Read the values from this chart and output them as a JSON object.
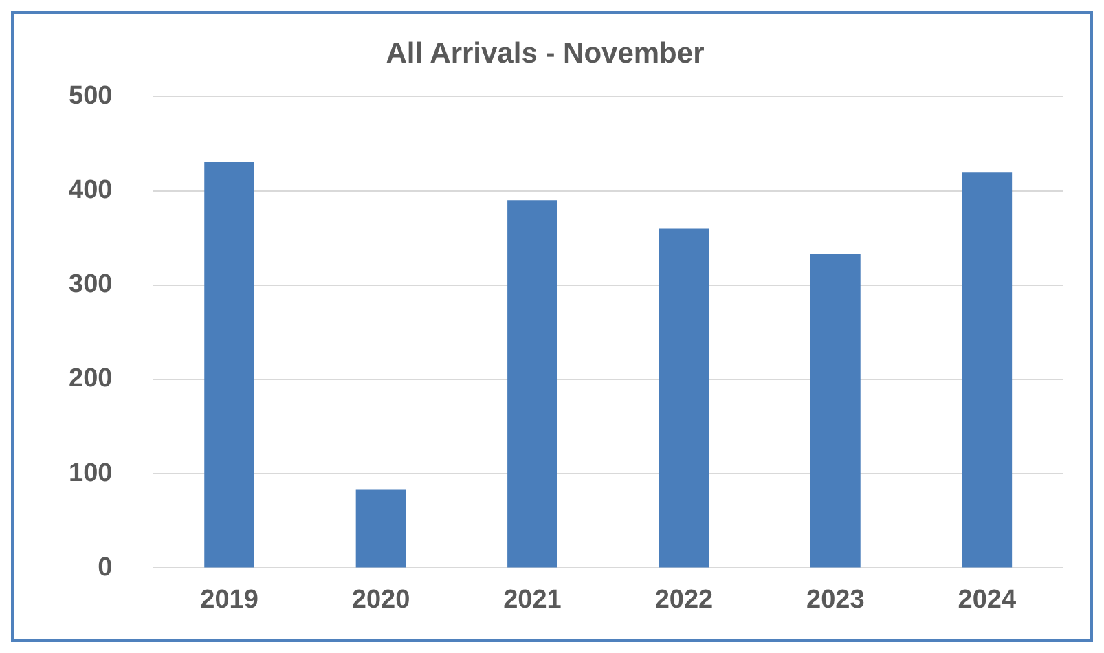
{
  "chart_data": {
    "type": "bar",
    "title": "All Arrivals - November",
    "categories": [
      "2019",
      "2020",
      "2021",
      "2022",
      "2023",
      "2024"
    ],
    "values": [
      431,
      83,
      390,
      360,
      333,
      420
    ],
    "color": "#4a7ebb",
    "ylim": [
      0,
      500
    ],
    "yticks": [
      0,
      100,
      200,
      300,
      400,
      500
    ],
    "grid": "y"
  }
}
